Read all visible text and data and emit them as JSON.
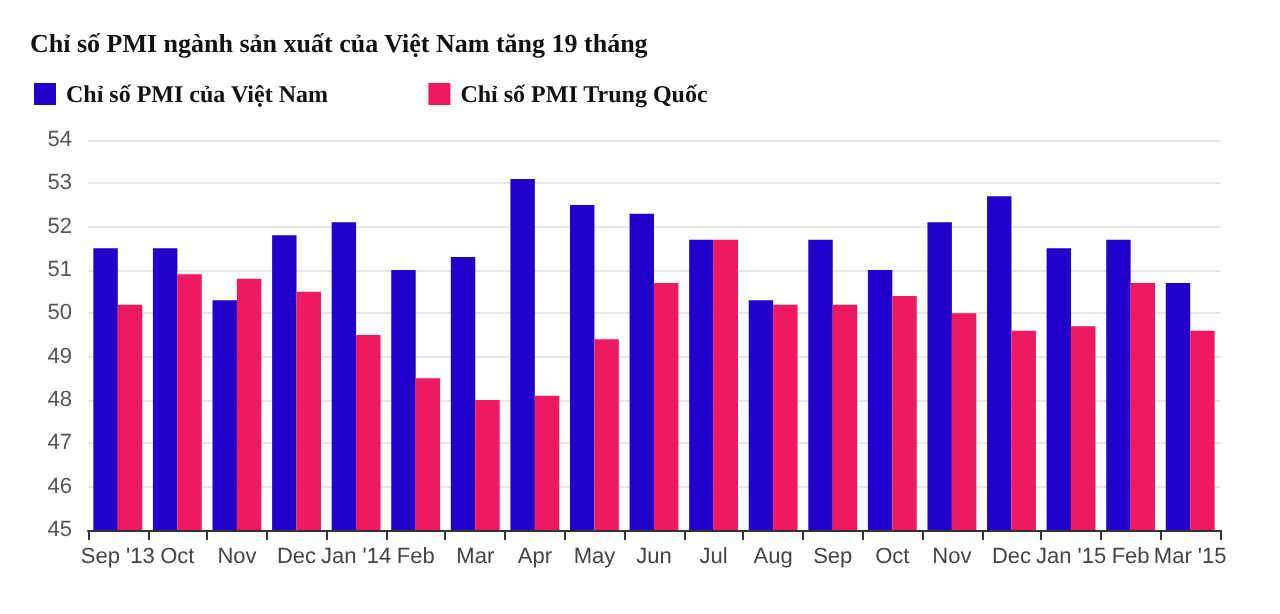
{
  "chart_data": {
    "type": "bar",
    "title": "Chỉ số PMI ngành sản xuất của Việt Nam tăng 19 tháng",
    "categories": [
      "Sep '13",
      "Oct",
      "Nov",
      "Dec",
      "Jan '14",
      "Feb",
      "Mar",
      "Apr",
      "May",
      "Jun",
      "Jul",
      "Aug",
      "Sep",
      "Oct",
      "Nov",
      "Dec",
      "Jan '15",
      "Feb",
      "Mar '15"
    ],
    "series": [
      {
        "name": "Chỉ số PMI của Việt Nam",
        "color": "#2200cc",
        "values": [
          51.5,
          51.5,
          50.3,
          51.8,
          52.1,
          51.0,
          51.3,
          53.1,
          52.5,
          52.3,
          51.7,
          50.3,
          51.7,
          51.0,
          52.1,
          52.7,
          51.5,
          51.7,
          50.7
        ]
      },
      {
        "name": "Chỉ số PMI Trung Quốc",
        "color": "#f0185f",
        "values": [
          50.2,
          50.9,
          50.8,
          50.5,
          49.5,
          48.5,
          48.0,
          48.1,
          49.4,
          50.7,
          51.7,
          50.2,
          50.2,
          50.4,
          50.0,
          49.6,
          49.7,
          50.7,
          49.6
        ]
      }
    ],
    "ylim": [
      45,
      54
    ],
    "yticks": [
      45,
      46,
      47,
      48,
      49,
      50,
      51,
      52,
      53,
      54
    ],
    "grid": "y",
    "legend": "top left"
  }
}
